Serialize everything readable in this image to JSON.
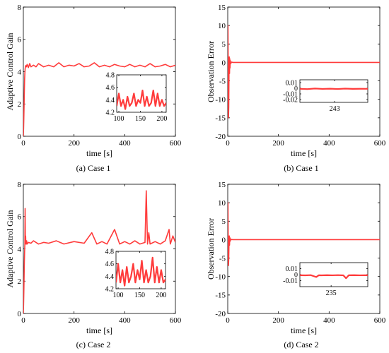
{
  "chart_data": [
    {
      "type": "line",
      "caption": "(a) Case 1",
      "xlabel": "time [s]",
      "ylabel": "Adaptive Control Gain",
      "xlim": [
        0,
        600
      ],
      "ylim": [
        0,
        8
      ],
      "xticks": [
        0,
        200,
        400,
        600
      ],
      "yticks": [
        0,
        2,
        4,
        6,
        8
      ],
      "grid": false,
      "series_color": "#ff3b3b",
      "series": [
        {
          "x": [
            0,
            1,
            2,
            3,
            4,
            5,
            6,
            7,
            8,
            9,
            10,
            12,
            15,
            20,
            25,
            30,
            40,
            50,
            60,
            80,
            100,
            120,
            140,
            160,
            180,
            200,
            220,
            240,
            260,
            280,
            300,
            320,
            340,
            360,
            380,
            400,
            420,
            440,
            460,
            480,
            500,
            520,
            540,
            560,
            580,
            600
          ],
          "y": [
            0,
            0.5,
            1.2,
            2.0,
            2.8,
            3.5,
            3.9,
            4.15,
            4.3,
            4.35,
            4.38,
            4.3,
            4.45,
            4.25,
            4.5,
            4.3,
            4.4,
            4.3,
            4.5,
            4.3,
            4.4,
            4.3,
            4.55,
            4.3,
            4.4,
            4.35,
            4.5,
            4.3,
            4.35,
            4.55,
            4.3,
            4.4,
            4.3,
            4.45,
            4.35,
            4.3,
            4.45,
            4.3,
            4.4,
            4.3,
            4.5,
            4.3,
            4.35,
            4.45,
            4.3,
            4.4
          ]
        }
      ],
      "inset": {
        "xlim": [
          95,
          210
        ],
        "ylim": [
          4.2,
          4.8
        ],
        "xticks": [
          100,
          150,
          200
        ],
        "yticks": [
          4.2,
          4.4,
          4.6,
          4.8
        ],
        "x": [
          95,
          100,
          105,
          110,
          115,
          120,
          125,
          130,
          135,
          140,
          145,
          150,
          155,
          160,
          165,
          170,
          175,
          180,
          185,
          190,
          195,
          200,
          205,
          210
        ],
        "y": [
          4.3,
          4.5,
          4.3,
          4.4,
          4.25,
          4.45,
          4.3,
          4.35,
          4.5,
          4.3,
          4.4,
          4.35,
          4.55,
          4.3,
          4.45,
          4.3,
          4.35,
          4.55,
          4.3,
          4.5,
          4.3,
          4.4,
          4.3,
          4.35
        ]
      }
    },
    {
      "type": "line",
      "caption": "(b) Case 1",
      "xlabel": "time [s]",
      "ylabel": "Observation Error",
      "xlim": [
        0,
        600
      ],
      "ylim": [
        -20,
        15
      ],
      "xticks": [
        0,
        200,
        400,
        600
      ],
      "yticks": [
        -20,
        -15,
        -10,
        -5,
        0,
        5,
        10,
        15
      ],
      "grid": false,
      "series_color": "#ff3b3b",
      "series": [
        {
          "x": [
            0,
            1,
            2,
            3,
            4,
            5,
            6,
            7,
            8,
            9,
            10,
            12,
            15,
            20,
            40,
            100,
            200,
            300,
            400,
            500,
            600
          ],
          "y": [
            0,
            10,
            -5,
            -15,
            -12,
            -3,
            1.5,
            -3,
            1.0,
            -1.5,
            0.5,
            -0.3,
            0.1,
            0,
            0,
            0,
            0,
            0,
            0,
            0,
            0
          ]
        }
      ],
      "inset": {
        "xlim": [
          220,
          265
        ],
        "ylim": [
          -0.025,
          0.015
        ],
        "xticks": [
          243
        ],
        "yticks": [
          -0.02,
          -0.01,
          0,
          0.01
        ],
        "x": [
          220,
          225,
          230,
          235,
          240,
          245,
          250,
          255,
          260,
          265
        ],
        "y": [
          -0.001,
          -0.0015,
          -0.0005,
          -0.0012,
          -0.0008,
          -0.0013,
          -0.0006,
          -0.0011,
          -0.0009,
          -0.001
        ]
      }
    },
    {
      "type": "line",
      "caption": "(c) Case 2",
      "xlabel": "time [s]",
      "ylabel": "Adaptive Control Gain",
      "xlim": [
        0,
        600
      ],
      "ylim": [
        0,
        8
      ],
      "xticks": [
        0,
        200,
        400,
        600
      ],
      "yticks": [
        0,
        2,
        4,
        6,
        8
      ],
      "grid": false,
      "series_color": "#ff3b3b",
      "series": [
        {
          "x": [
            0,
            1,
            2,
            3,
            4,
            5,
            6,
            7,
            8,
            9,
            10,
            11,
            12,
            13,
            15,
            20,
            30,
            40,
            60,
            80,
            100,
            130,
            160,
            200,
            240,
            270,
            290,
            310,
            330,
            360,
            380,
            400,
            420,
            440,
            460,
            480,
            485,
            490,
            495,
            500,
            520,
            540,
            560,
            575,
            580,
            590,
            600
          ],
          "y": [
            0,
            0.6,
            1.4,
            2.3,
            3.2,
            3.8,
            4.3,
            6.5,
            4.4,
            4.8,
            4.3,
            4.35,
            4.3,
            4.5,
            4.3,
            4.4,
            4.35,
            4.5,
            4.3,
            4.4,
            4.35,
            4.5,
            4.3,
            4.45,
            4.35,
            5.0,
            4.3,
            4.45,
            4.3,
            5.2,
            4.3,
            4.45,
            4.3,
            4.5,
            4.3,
            4.4,
            7.6,
            4.3,
            5.0,
            4.3,
            4.45,
            4.3,
            4.5,
            5.2,
            4.3,
            4.8,
            4.4
          ]
        }
      ],
      "inset": {
        "xlim": [
          95,
          210
        ],
        "ylim": [
          4.2,
          4.8
        ],
        "xticks": [
          100,
          150,
          200
        ],
        "yticks": [
          4.2,
          4.4,
          4.6,
          4.8
        ],
        "x": [
          95,
          100,
          105,
          110,
          115,
          120,
          125,
          130,
          135,
          140,
          145,
          150,
          155,
          160,
          165,
          170,
          175,
          180,
          185,
          190,
          195,
          200,
          205,
          210
        ],
        "y": [
          4.3,
          4.6,
          4.3,
          4.5,
          4.25,
          4.55,
          4.3,
          4.4,
          4.6,
          4.3,
          4.5,
          4.35,
          4.65,
          4.3,
          4.5,
          4.3,
          4.4,
          4.7,
          4.3,
          4.55,
          4.3,
          4.5,
          4.3,
          4.35
        ]
      }
    },
    {
      "type": "line",
      "caption": "(d) Case 2",
      "xlabel": "time [s]",
      "ylabel": "Observation Error",
      "xlim": [
        0,
        600
      ],
      "ylim": [
        -20,
        15
      ],
      "xticks": [
        0,
        200,
        400,
        600
      ],
      "yticks": [
        -20,
        -15,
        -10,
        -5,
        0,
        5,
        10,
        15
      ],
      "grid": false,
      "series_color": "#ff3b3b",
      "series": [
        {
          "x": [
            0,
            1,
            2,
            3,
            4,
            5,
            6,
            7,
            8,
            9,
            10,
            12,
            15,
            20,
            40,
            100,
            200,
            300,
            400,
            500,
            600
          ],
          "y": [
            0,
            10,
            -3,
            -7,
            -5,
            -1,
            1.0,
            -1.5,
            0.6,
            -0.5,
            0.3,
            -0.1,
            0.05,
            0,
            0,
            0,
            0,
            0,
            0,
            0,
            0
          ]
        }
      ],
      "inset": {
        "xlim": [
          212,
          262
        ],
        "ylim": [
          -0.02,
          0.02
        ],
        "xticks": [
          235
        ],
        "yticks": [
          -0.01,
          0,
          0.01
        ],
        "x": [
          212,
          216,
          220,
          224,
          226,
          228,
          232,
          236,
          240,
          244,
          246,
          248,
          252,
          256,
          260,
          262
        ],
        "y": [
          -0.001,
          -0.0012,
          -0.0008,
          -0.004,
          -0.001,
          -0.0012,
          -0.0009,
          -0.0011,
          -0.0008,
          -0.0012,
          -0.006,
          -0.001,
          -0.0009,
          -0.0011,
          -0.001,
          -0.001
        ]
      }
    }
  ]
}
